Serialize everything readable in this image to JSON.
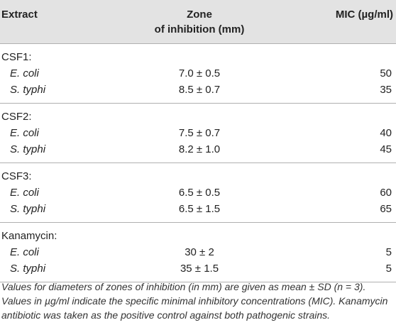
{
  "table": {
    "headers": {
      "extract": "Extract",
      "zone_line1": "Zone",
      "zone_line2": "of inhibition (mm)",
      "mic": "MIC (µg/ml)"
    },
    "groups": [
      {
        "name": "CSF1:",
        "rows": [
          {
            "organism": "E. coli",
            "zone": "7.0 ± 0.5",
            "mic": "50"
          },
          {
            "organism": "S. typhi",
            "zone": "8.5 ± 0.7",
            "mic": "35"
          }
        ]
      },
      {
        "name": "CSF2:",
        "rows": [
          {
            "organism": "E. coli",
            "zone": "7.5 ± 0.7",
            "mic": "40"
          },
          {
            "organism": "S. typhi",
            "zone": "8.2 ± 1.0",
            "mic": "45"
          }
        ]
      },
      {
        "name": "CSF3:",
        "rows": [
          {
            "organism": "E. coli",
            "zone": "6.5 ± 0.5",
            "mic": "60"
          },
          {
            "organism": "S. typhi",
            "zone": "6.5 ± 1.5",
            "mic": "65"
          }
        ]
      },
      {
        "name": "Kanamycin:",
        "rows": [
          {
            "organism": "E. coli",
            "zone": "30 ± 2",
            "mic": "5"
          },
          {
            "organism": "S. typhi",
            "zone": "35 ± 1.5",
            "mic": "5"
          }
        ]
      }
    ]
  },
  "footnote": "Values for diameters of zones of inhibition (in mm) are given as mean ± SD (n = 3). Values in µg/ml indicate the specific minimal inhibitory concentrations (MIC). Kanamycin antibiotic was taken as the positive control against both pathogenic strains."
}
